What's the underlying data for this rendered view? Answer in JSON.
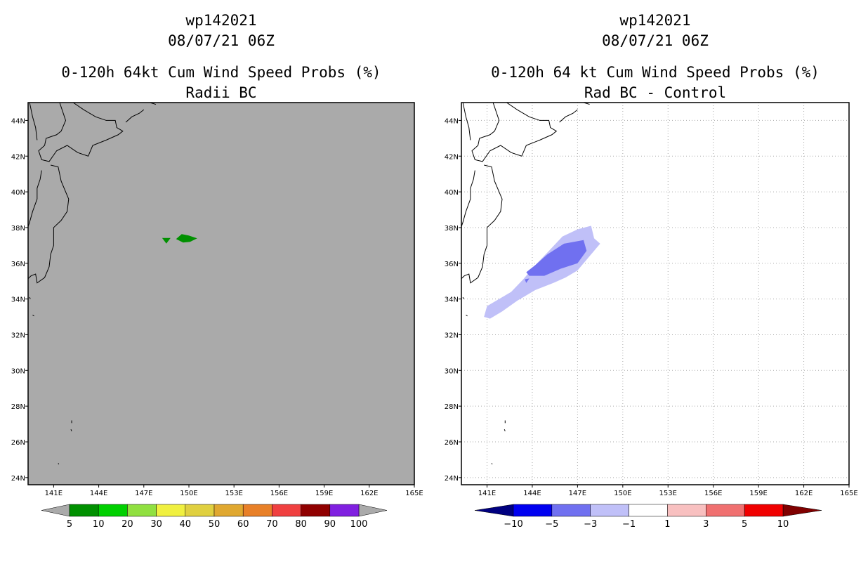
{
  "chart_data": [
    {
      "type": "heatmap",
      "storm_id": "wp142021",
      "date": "08/07/21 06Z",
      "title": "0-120h 64kt Cum Wind Speed Probs (%)",
      "subtitle": "Radii BC",
      "x_ticks": [
        "141E",
        "144E",
        "147E",
        "150E",
        "153E",
        "156E",
        "159E",
        "162E",
        "165E"
      ],
      "y_ticks": [
        "44N",
        "42N",
        "40N",
        "38N",
        "36N",
        "34N",
        "32N",
        "30N",
        "28N",
        "26N",
        "24N"
      ],
      "xlim": [
        139.3,
        165
      ],
      "ylim": [
        23.6,
        45
      ],
      "background": "#aaaaaa",
      "colorbar": {
        "labels": [
          "5",
          "10",
          "20",
          "30",
          "40",
          "50",
          "60",
          "70",
          "80",
          "90",
          "100"
        ],
        "colors": [
          "#009000",
          "#00d000",
          "#90e040",
          "#f0f040",
          "#e0d040",
          "#e0a830",
          "#e88028",
          "#f04040",
          "#900000",
          "#8020e0"
        ]
      },
      "features": [
        {
          "name": "prob-5-10-area",
          "value_range": "5-10",
          "color": "#009000",
          "lon_center": 149.8,
          "lat_center": 37.4
        },
        {
          "name": "prob-5-10-speck",
          "value_range": "5-10",
          "color": "#009000",
          "lon_center": 148.5,
          "lat_center": 37.3
        }
      ]
    },
    {
      "type": "heatmap",
      "storm_id": "wp142021",
      "date": "08/07/21 06Z",
      "title": "0-120h 64 kt Cum Wind Speed Probs (%)",
      "subtitle": "Rad BC - Control",
      "x_ticks": [
        "141E",
        "144E",
        "147E",
        "150E",
        "153E",
        "156E",
        "159E",
        "162E",
        "165E"
      ],
      "y_ticks": [
        "44N",
        "42N",
        "40N",
        "38N",
        "36N",
        "34N",
        "32N",
        "30N",
        "28N",
        "26N",
        "24N"
      ],
      "xlim": [
        139.3,
        165
      ],
      "ylim": [
        23.6,
        45
      ],
      "background": "#ffffff",
      "grid": true,
      "colorbar": {
        "labels": [
          "-10",
          "-5",
          "-3",
          "-1",
          "1",
          "3",
          "5",
          "10"
        ],
        "colors": [
          "#000080",
          "#0000f0",
          "#7070f0",
          "#c0c0f8",
          "#ffffff",
          "#f8c0c0",
          "#f07070",
          "#f00000",
          "#800000"
        ]
      },
      "features": [
        {
          "name": "diff-minus1-to-minus3-band",
          "value_range": "-3 to -1",
          "color": "#c0c0f8",
          "lon_range": [
            140.8,
            148.5
          ],
          "lat_range": [
            32.9,
            38.1
          ]
        },
        {
          "name": "diff-minus3-to-minus5-core",
          "value_range": "-5 to -3",
          "color": "#7070f0",
          "lon_range": [
            143.6,
            147.6
          ],
          "lat_range": [
            35.3,
            37.3
          ]
        }
      ]
    }
  ]
}
